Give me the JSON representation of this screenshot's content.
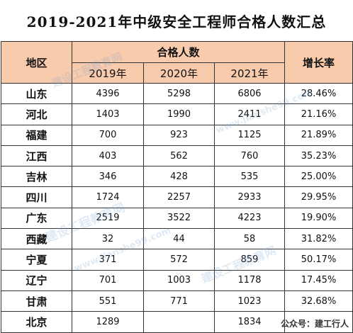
{
  "title": "2019-2021年中级安全工程师合格人数汇总",
  "headers": {
    "region": "地区",
    "group": "合格人数",
    "years": [
      "2019年",
      "2020年",
      "2021年"
    ],
    "growth": "增长率"
  },
  "rows": [
    {
      "region": "山东",
      "v2019": "4396",
      "v2020": "5298",
      "v2021": "6806",
      "growth": "28.46%"
    },
    {
      "region": "河北",
      "v2019": "1403",
      "v2020": "1990",
      "v2021": "2411",
      "growth": "21.16%"
    },
    {
      "region": "福建",
      "v2019": "700",
      "v2020": "923",
      "v2021": "1125",
      "growth": "21.89%"
    },
    {
      "region": "江西",
      "v2019": "403",
      "v2020": "562",
      "v2021": "760",
      "growth": "35.23%"
    },
    {
      "region": "吉林",
      "v2019": "346",
      "v2020": "428",
      "v2021": "535",
      "growth": "25.00%"
    },
    {
      "region": "四川",
      "v2019": "1724",
      "v2020": "2257",
      "v2021": "2933",
      "growth": "29.95%"
    },
    {
      "region": "广东",
      "v2019": "2519",
      "v2020": "3522",
      "v2021": "4223",
      "growth": "19.90%"
    },
    {
      "region": "西藏",
      "v2019": "32",
      "v2020": "44",
      "v2021": "58",
      "growth": "31.82%"
    },
    {
      "region": "宁夏",
      "v2019": "371",
      "v2020": "572",
      "v2021": "859",
      "growth": "50.17%"
    },
    {
      "region": "辽宁",
      "v2019": "701",
      "v2020": "1003",
      "v2021": "1178",
      "growth": "17.45%"
    },
    {
      "region": "甘肃",
      "v2019": "551",
      "v2020": "771",
      "v2021": "1023",
      "growth": "32.68%"
    },
    {
      "region": "北京",
      "v2019": "1289",
      "v2020": "",
      "v2021": "1834",
      "growth": ""
    }
  ],
  "footer": "公众号：建工行人",
  "watermark": {
    "brand": "建设工程教育网",
    "url": "www.jianshe99.com"
  },
  "colors": {
    "header_bg": "#f8cbad",
    "border": "#333333"
  }
}
